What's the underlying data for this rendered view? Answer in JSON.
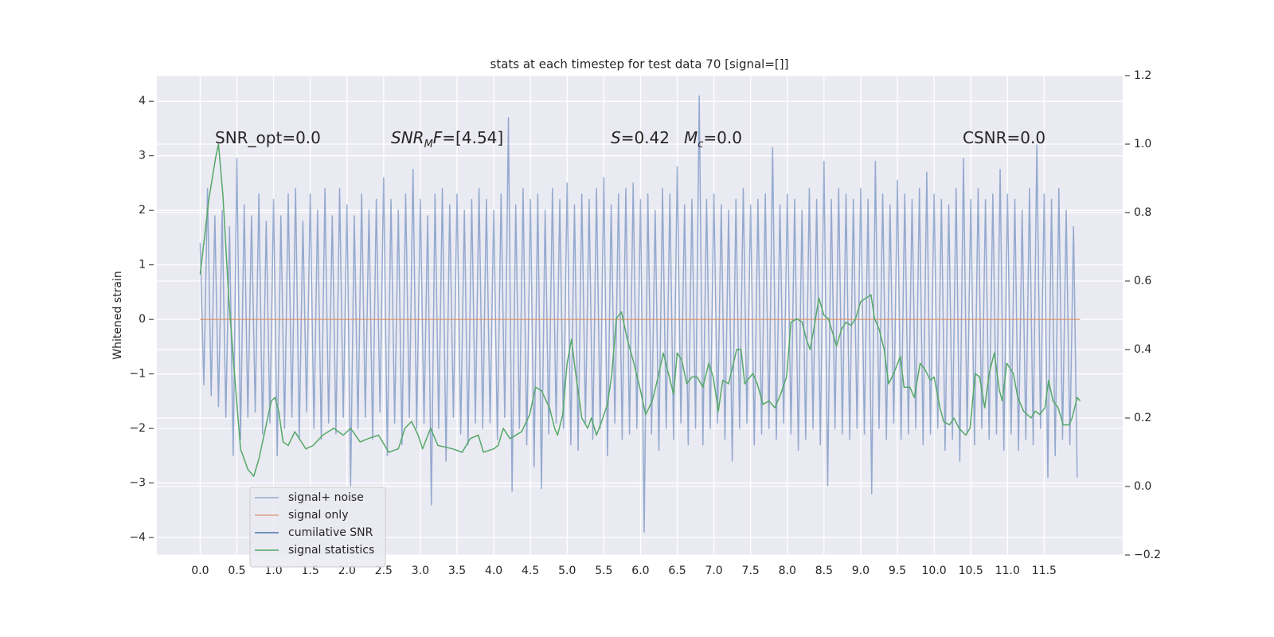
{
  "chart_data": {
    "type": "line",
    "title": "stats at each timestep for test data 70 [signal=[]]",
    "ylabel": "Whitened strain",
    "xlim": [
      -0.59,
      12.57
    ],
    "ylim": [
      -4.32,
      4.47
    ],
    "y2lim": [
      -0.2,
      1.2
    ],
    "xticks": [
      {
        "value": 0,
        "label": "0.0"
      },
      0.5,
      {
        "value": 1,
        "label": "1.0"
      },
      1.5,
      {
        "value": 2,
        "label": "2.0"
      },
      2.5,
      {
        "value": 3,
        "label": "3.0"
      },
      3.5,
      {
        "value": 4,
        "label": "4.0"
      },
      4.5,
      {
        "value": 5,
        "label": "5.0"
      },
      5.5,
      {
        "value": 6,
        "label": "6.0"
      },
      6.5,
      {
        "value": 7,
        "label": "7.0"
      },
      7.5,
      {
        "value": 8,
        "label": "8.0"
      },
      8.5,
      {
        "value": 9,
        "label": "9.0"
      },
      9.5,
      {
        "value": 10,
        "label": "10.0"
      },
      10.5,
      {
        "value": 11,
        "label": "11.0"
      },
      11.5
    ],
    "yticks": [
      {
        "value": -4,
        "label": "−4"
      },
      {
        "value": -3,
        "label": "−3"
      },
      {
        "value": -2,
        "label": "−2"
      },
      {
        "value": -1,
        "label": "−1"
      },
      0,
      1,
      2,
      3,
      4
    ],
    "y2ticks": [
      {
        "value": -0.2,
        "label": "−0.2"
      },
      {
        "value": 0,
        "label": "0.0"
      },
      0.2,
      0.4,
      0.6,
      0.8,
      {
        "value": 1,
        "label": "1.0"
      },
      1.2
    ],
    "grid": true,
    "legend": "lower left",
    "annotations": [
      {
        "parts": [
          {
            "text": "SNR_opt=0.0"
          }
        ]
      },
      {
        "parts": [
          {
            "text": "SNR",
            "italic": true
          },
          {
            "text": "M",
            "italic": true,
            "sub": true
          },
          {
            "text": "F",
            "italic": true
          },
          {
            "text": "=[4.54]"
          }
        ]
      },
      {
        "parts": [
          {
            "text": "S",
            "italic": true
          },
          {
            "text": "=0.42"
          }
        ]
      },
      {
        "parts": [
          {
            "text": "M",
            "italic": true
          },
          {
            "text": "c",
            "italic": true,
            "sub": true
          },
          {
            "text": "=0.0"
          }
        ]
      },
      {
        "parts": [
          {
            "text": "CSNR=0.0"
          }
        ]
      }
    ],
    "series": [
      {
        "name": "signal+ noise",
        "color": "#4c72b0",
        "opacity": 0.55,
        "x": [
          0,
          0.05,
          0.1,
          0.15,
          0.2,
          0.25,
          0.3,
          0.35,
          0.4,
          0.45,
          0.5,
          0.55,
          0.6,
          0.65,
          0.7,
          0.75,
          0.8,
          0.85,
          0.9,
          0.95,
          1,
          1.05,
          1.1,
          1.15,
          1.2,
          1.25,
          1.3,
          1.35,
          1.4,
          1.45,
          1.5,
          1.55,
          1.6,
          1.65,
          1.7,
          1.75,
          1.8,
          1.85,
          1.9,
          1.95,
          2,
          2.05,
          2.1,
          2.15,
          2.2,
          2.25,
          2.3,
          2.35,
          2.4,
          2.45,
          2.5,
          2.55,
          2.6,
          2.65,
          2.7,
          2.75,
          2.8,
          2.85,
          2.9,
          2.95,
          3,
          3.05,
          3.1,
          3.15,
          3.2,
          3.25,
          3.3,
          3.35,
          3.4,
          3.45,
          3.5,
          3.55,
          3.6,
          3.65,
          3.7,
          3.75,
          3.8,
          3.85,
          3.9,
          3.95,
          4,
          4.05,
          4.1,
          4.15,
          4.2,
          4.25,
          4.3,
          4.35,
          4.4,
          4.45,
          4.5,
          4.55,
          4.6,
          4.65,
          4.7,
          4.75,
          4.8,
          4.85,
          4.9,
          4.95,
          5,
          5.05,
          5.1,
          5.15,
          5.2,
          5.25,
          5.3,
          5.35,
          5.4,
          5.45,
          5.5,
          5.55,
          5.6,
          5.65,
          5.7,
          5.75,
          5.8,
          5.85,
          5.9,
          5.95,
          6,
          6.05,
          6.1,
          6.15,
          6.2,
          6.25,
          6.3,
          6.35,
          6.4,
          6.45,
          6.5,
          6.55,
          6.6,
          6.65,
          6.7,
          6.75,
          6.8,
          6.85,
          6.9,
          6.95,
          7,
          7.05,
          7.1,
          7.15,
          7.2,
          7.25,
          7.3,
          7.35,
          7.4,
          7.45,
          7.5,
          7.55,
          7.6,
          7.65,
          7.7,
          7.75,
          7.8,
          7.85,
          7.9,
          7.95,
          8,
          8.05,
          8.1,
          8.15,
          8.2,
          8.25,
          8.3,
          8.35,
          8.4,
          8.45,
          8.5,
          8.55,
          8.6,
          8.65,
          8.7,
          8.75,
          8.8,
          8.85,
          8.9,
          8.95,
          9,
          9.05,
          9.1,
          9.15,
          9.2,
          9.25,
          9.3,
          9.35,
          9.4,
          9.45,
          9.5,
          9.55,
          9.6,
          9.65,
          9.7,
          9.75,
          9.8,
          9.85,
          9.9,
          9.95,
          10,
          10.05,
          10.1,
          10.15,
          10.2,
          10.25,
          10.3,
          10.35,
          10.4,
          10.45,
          10.5,
          10.55,
          10.6,
          10.65,
          10.7,
          10.75,
          10.8,
          10.85,
          10.9,
          10.95,
          11,
          11.05,
          11.1,
          11.15,
          11.2,
          11.25,
          11.3,
          11.35,
          11.4,
          11.45,
          11.5,
          11.55,
          11.6,
          11.65,
          11.7,
          11.75,
          11.8,
          11.85,
          11.9,
          11.95
        ],
        "values": [
          1.4,
          -1.2,
          2.4,
          -1.4,
          1.9,
          -1.6,
          2.0,
          -1.8,
          1.7,
          -2.5,
          2.95,
          -2.2,
          2.1,
          -1.8,
          1.9,
          -1.7,
          2.3,
          -2.1,
          1.8,
          -1.9,
          2.2,
          -2.5,
          1.9,
          -2.0,
          2.3,
          -1.8,
          2.4,
          -2.2,
          1.8,
          -1.7,
          2.3,
          -2.0,
          2.0,
          -2.2,
          2.4,
          -1.9,
          1.9,
          -2.1,
          2.4,
          -1.8,
          2.1,
          -3.05,
          1.9,
          -2.0,
          2.3,
          -1.8,
          2.0,
          -2.2,
          2.2,
          -1.7,
          2.6,
          -2.5,
          2.2,
          -1.9,
          2.0,
          -2.3,
          2.3,
          -1.8,
          2.75,
          -2.0,
          2.2,
          -1.9,
          1.9,
          -3.4,
          2.3,
          -2.0,
          2.4,
          -2.6,
          2.1,
          -1.8,
          2.3,
          -2.1,
          2.0,
          -2.3,
          2.2,
          -1.9,
          2.4,
          -2.0,
          2.2,
          -1.9,
          2.0,
          -2.2,
          2.3,
          -1.8,
          3.7,
          -3.15,
          2.1,
          -2.0,
          2.4,
          -2.3,
          2.2,
          -2.7,
          2.3,
          -3.1,
          2.0,
          -2.1,
          2.4,
          -1.9,
          2.2,
          -2.0,
          2.5,
          -2.3,
          2.1,
          -2.4,
          2.3,
          -1.9,
          2.2,
          -2.2,
          2.4,
          -2.0,
          2.6,
          -2.5,
          2.1,
          -1.9,
          2.3,
          -2.2,
          2.4,
          -2.1,
          2.5,
          -2.0,
          2.2,
          -3.9,
          2.3,
          -2.1,
          2.0,
          -2.4,
          2.4,
          -2.0,
          2.3,
          -2.2,
          2.8,
          -1.9,
          2.1,
          -2.3,
          2.2,
          -2.0,
          4.1,
          -2.3,
          2.2,
          -2.0,
          2.3,
          -1.9,
          2.1,
          -2.2,
          2.0,
          -2.6,
          2.2,
          -2.0,
          2.4,
          -1.9,
          2.1,
          -2.3,
          2.2,
          -2.1,
          2.3,
          -2.0,
          3.15,
          -2.2,
          2.1,
          -1.9,
          2.3,
          -2.1,
          2.2,
          -2.4,
          2.0,
          -2.2,
          2.4,
          -2.0,
          2.2,
          -2.3,
          2.9,
          -3.05,
          2.2,
          -2.0,
          2.4,
          -2.1,
          2.3,
          -2.2,
          2.2,
          -2.0,
          2.4,
          -2.1,
          2.2,
          -3.2,
          2.9,
          -2.0,
          2.3,
          -2.2,
          2.1,
          -1.9,
          2.55,
          -2.2,
          2.3,
          -2.1,
          2.2,
          -2.0,
          2.4,
          -2.3,
          2.7,
          -2.1,
          2.3,
          -2.0,
          2.2,
          -2.4,
          2.1,
          -2.2,
          2.4,
          -2.6,
          2.95,
          -2.1,
          2.2,
          -2.3,
          2.4,
          -2.0,
          2.2,
          -2.2,
          2.3,
          -2.1,
          2.75,
          -2.4,
          2.3,
          -2.1,
          2.2,
          -2.4,
          2.0,
          -2.2,
          2.4,
          -2.3,
          3.2,
          -2.0,
          2.3,
          -2.9,
          2.2,
          -2.5,
          2.4,
          -2.2,
          2.0,
          -2.3,
          1.7,
          -2.9
        ]
      },
      {
        "name": "signal only",
        "color": "#dd8452",
        "opacity": 0.7,
        "x": [
          0,
          11.99
        ],
        "values": [
          0,
          0
        ]
      },
      {
        "name": "cumilative SNR",
        "color": "#4c72b0",
        "opacity": 1,
        "x": [],
        "values": []
      },
      {
        "name": "signal statistics",
        "color": "#55a868",
        "opacity": 1,
        "axis": "y2",
        "x": [
          0,
          0.12,
          0.21,
          0.25,
          0.31,
          0.39,
          0.46,
          0.55,
          0.65,
          0.73,
          0.8,
          0.89,
          0.97,
          1.02,
          1.07,
          1.13,
          1.2,
          1.29,
          1.35,
          1.44,
          1.54,
          1.67,
          1.82,
          1.95,
          2.05,
          2.18,
          2.29,
          2.43,
          2.57,
          2.7,
          2.79,
          2.88,
          2.97,
          3.03,
          3.14,
          3.24,
          3.44,
          3.57,
          3.68,
          3.79,
          3.86,
          4.0,
          4.06,
          4.13,
          4.22,
          4.38,
          4.49,
          4.57,
          4.65,
          4.76,
          4.83,
          4.87,
          4.94,
          5.0,
          5.06,
          5.11,
          5.2,
          5.28,
          5.33,
          5.4,
          5.47,
          5.55,
          5.61,
          5.67,
          5.74,
          5.82,
          5.91,
          6.0,
          6.07,
          6.16,
          6.24,
          6.31,
          6.38,
          6.45,
          6.5,
          6.56,
          6.63,
          6.7,
          6.77,
          6.85,
          6.93,
          6.99,
          7.06,
          7.12,
          7.2,
          7.31,
          7.37,
          7.42,
          7.53,
          7.59,
          7.67,
          7.75,
          7.83,
          7.91,
          7.99,
          8.05,
          8.13,
          8.2,
          8.26,
          8.31,
          8.37,
          8.43,
          8.5,
          8.56,
          8.63,
          8.67,
          8.74,
          8.8,
          8.87,
          8.93,
          9.0,
          9.07,
          9.14,
          9.19,
          9.25,
          9.32,
          9.38,
          9.45,
          9.54,
          9.59,
          9.67,
          9.73,
          9.81,
          9.88,
          9.95,
          10.0,
          10.08,
          10.13,
          10.21,
          10.27,
          10.34,
          10.43,
          10.49,
          10.56,
          10.62,
          10.69,
          10.75,
          10.82,
          10.89,
          10.93,
          10.99,
          11.08,
          11.14,
          11.22,
          11.32,
          11.38,
          11.44,
          11.51,
          11.56,
          11.62,
          11.69,
          11.76,
          11.84,
          11.88,
          11.95,
          11.99
        ],
        "values": [
          0.62,
          0.84,
          0.96,
          1.0,
          0.85,
          0.55,
          0.35,
          0.11,
          0.05,
          0.03,
          0.08,
          0.17,
          0.25,
          0.26,
          0.22,
          0.13,
          0.12,
          0.16,
          0.14,
          0.11,
          0.12,
          0.15,
          0.17,
          0.15,
          0.17,
          0.13,
          0.14,
          0.15,
          0.1,
          0.11,
          0.17,
          0.19,
          0.15,
          0.11,
          0.17,
          0.12,
          0.11,
          0.1,
          0.14,
          0.15,
          0.1,
          0.11,
          0.12,
          0.17,
          0.14,
          0.16,
          0.21,
          0.29,
          0.28,
          0.23,
          0.17,
          0.15,
          0.21,
          0.36,
          0.43,
          0.34,
          0.2,
          0.17,
          0.2,
          0.15,
          0.19,
          0.24,
          0.33,
          0.49,
          0.51,
          0.43,
          0.36,
          0.28,
          0.21,
          0.25,
          0.32,
          0.39,
          0.33,
          0.27,
          0.39,
          0.37,
          0.3,
          0.32,
          0.32,
          0.29,
          0.36,
          0.32,
          0.22,
          0.31,
          0.3,
          0.4,
          0.4,
          0.3,
          0.33,
          0.3,
          0.24,
          0.25,
          0.23,
          0.27,
          0.32,
          0.48,
          0.49,
          0.48,
          0.43,
          0.4,
          0.47,
          0.55,
          0.5,
          0.49,
          0.44,
          0.41,
          0.46,
          0.48,
          0.47,
          0.49,
          0.54,
          0.55,
          0.56,
          0.49,
          0.46,
          0.4,
          0.3,
          0.33,
          0.38,
          0.29,
          0.29,
          0.26,
          0.36,
          0.34,
          0.31,
          0.32,
          0.23,
          0.19,
          0.18,
          0.2,
          0.17,
          0.15,
          0.17,
          0.33,
          0.32,
          0.23,
          0.33,
          0.39,
          0.28,
          0.25,
          0.36,
          0.33,
          0.26,
          0.22,
          0.2,
          0.22,
          0.21,
          0.23,
          0.31,
          0.25,
          0.23,
          0.18,
          0.18,
          0.2,
          0.26,
          0.25
        ]
      }
    ]
  }
}
